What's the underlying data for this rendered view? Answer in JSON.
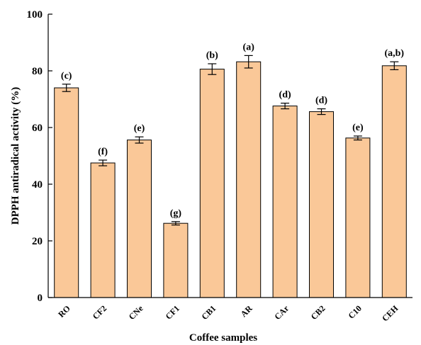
{
  "chart_data": {
    "type": "bar",
    "title": "",
    "xlabel": "Coffee samples",
    "ylabel": "DPPH antiradical activity  (%)",
    "ylim": [
      0,
      100
    ],
    "yticks": [
      0,
      20,
      40,
      60,
      80,
      100
    ],
    "grid": false,
    "legend": "none",
    "categories": [
      "RO",
      "CF2",
      "CNe",
      "CF1",
      "CB1",
      "AR",
      "CAr",
      "CB2",
      "C10",
      "CEH"
    ],
    "values": [
      74,
      47.5,
      55.6,
      26.2,
      80.6,
      83.2,
      67.6,
      65.6,
      56.3,
      81.8
    ],
    "errors": [
      1.3,
      1.0,
      1.1,
      0.6,
      1.9,
      2.2,
      1.0,
      1.0,
      0.7,
      1.4
    ],
    "significance_labels": [
      "(c)",
      "(f)",
      "(e)",
      "(g)",
      "(b)",
      "(a)",
      "(d)",
      "(d)",
      "(e)",
      "(a,b)"
    ],
    "bar_color": "#FAC898",
    "bar_edge_color": "#000000"
  }
}
